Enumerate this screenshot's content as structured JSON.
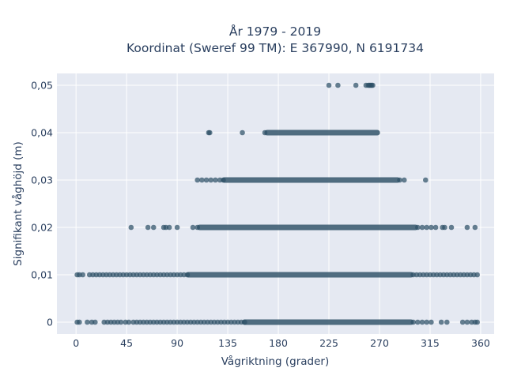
{
  "chart_data": {
    "type": "scatter",
    "title_lines": [
      "År 1979 - 2019",
      "Koordinat (Sweref 99 TM): E 367990, N 6191734"
    ],
    "xlabel": "Vågriktning (grader)",
    "ylabel": "Signifikant våghöjd (m)",
    "xlim": [
      -17,
      372
    ],
    "ylim": [
      -0.0025,
      0.0525
    ],
    "x_ticks": [
      0,
      45,
      90,
      135,
      180,
      225,
      270,
      315,
      360
    ],
    "x_tick_labels": [
      "0",
      "45",
      "90",
      "135",
      "180",
      "225",
      "270",
      "315",
      "360"
    ],
    "y_ticks": [
      0,
      0.01,
      0.02,
      0.03,
      0.04,
      0.05
    ],
    "y_tick_labels": [
      "0",
      "0,01",
      "0,02",
      "0,03",
      "0,04",
      "0,05"
    ],
    "grid": true,
    "colors": {
      "plot_bg": "#e5e9f2",
      "grid": "#ffffff",
      "marker": "#2e5066",
      "text": "#2a3f5f"
    },
    "series": [
      {
        "points": [
          {
            "y": 0.05,
            "x": [
              225,
              233,
              249,
              258,
              260,
              261,
              262,
              263,
              264
            ]
          },
          {
            "y": 0.04,
            "x": [
              118,
              119,
              148,
              168
            ]
          },
          {
            "y": 0.03,
            "x": [
              108,
              112,
              116,
              120,
              124,
              128,
              131,
              288,
              292,
              311
            ]
          },
          {
            "y": 0.02,
            "x": [
              49,
              64,
              69,
              78,
              80,
              83,
              90,
              104,
              108,
              304,
              308,
              312,
              316,
              320,
              326,
              328,
              334,
              348,
              355
            ]
          },
          {
            "y": 0.01,
            "x": [
              1,
              3,
              6,
              12,
              15,
              18,
              21,
              24,
              27,
              30,
              33,
              36,
              39,
              42,
              45,
              48,
              51,
              54,
              57,
              60,
              63,
              66,
              69,
              72,
              75,
              78,
              81,
              84,
              87,
              90,
              93,
              96,
              99,
              300,
              303,
              306,
              309,
              312,
              315,
              318,
              321,
              324,
              327,
              330,
              333,
              336,
              339,
              342,
              345,
              348,
              351,
              354,
              357
            ]
          },
          {
            "y": 0,
            "x": [
              1,
              3,
              10,
              14,
              17,
              25,
              28,
              31,
              34,
              37,
              40,
              44,
              47,
              51,
              54,
              57,
              60,
              63,
              66,
              69,
              72,
              75,
              78,
              81,
              84,
              87,
              90,
              93,
              96,
              99,
              102,
              105,
              108,
              111,
              114,
              117,
              120,
              123,
              126,
              129,
              132,
              135,
              138,
              141,
              144,
              147,
              150,
              300,
              304,
              308,
              312,
              316,
              325,
              330,
              344,
              348,
              352,
              355,
              357
            ]
          }
        ],
        "dense_bands": [
          {
            "y": 0.04,
            "x_range": [
              170,
              268
            ]
          },
          {
            "y": 0.03,
            "x_range": [
              132,
              286
            ]
          },
          {
            "y": 0.02,
            "x_range": [
              110,
              302
            ]
          },
          {
            "y": 0.01,
            "x_range": [
              100,
              298
            ]
          },
          {
            "y": 0,
            "x_range": [
              150,
              298
            ]
          }
        ]
      }
    ]
  }
}
